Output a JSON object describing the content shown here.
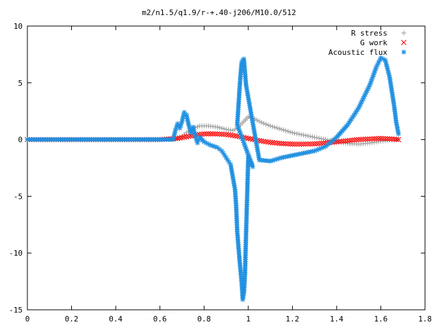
{
  "chart_data": {
    "type": "scatter",
    "title": "m2/n1.5/q1.9/r-+.40-j206/M10.0/512",
    "xlabel": "",
    "ylabel": "",
    "xlim": [
      0,
      1.8
    ],
    "ylim": [
      -15,
      10
    ],
    "x_ticks": [
      "0",
      "0.2",
      "0.4",
      "0.6",
      "0.8",
      "1",
      "1.2",
      "1.4",
      "1.6",
      "1.8"
    ],
    "y_ticks": [
      "10",
      "5",
      "0",
      "-5",
      "-10",
      "-15"
    ],
    "grid": false,
    "legend_position": "top-right",
    "series": [
      {
        "name": "R stress",
        "marker": "+",
        "color": "#a0a0a0",
        "points": [
          [
            0.0,
            0.0
          ],
          [
            0.1,
            0.0
          ],
          [
            0.2,
            0.0
          ],
          [
            0.3,
            0.0
          ],
          [
            0.4,
            0.0
          ],
          [
            0.5,
            0.0
          ],
          [
            0.6,
            0.0
          ],
          [
            0.68,
            0.1
          ],
          [
            0.7,
            0.3
          ],
          [
            0.72,
            0.6
          ],
          [
            0.75,
            1.0
          ],
          [
            0.78,
            1.2
          ],
          [
            0.82,
            1.2
          ],
          [
            0.86,
            1.1
          ],
          [
            0.9,
            0.9
          ],
          [
            0.93,
            0.8
          ],
          [
            0.95,
            1.0
          ],
          [
            0.98,
            1.6
          ],
          [
            1.0,
            2.0
          ],
          [
            1.03,
            1.8
          ],
          [
            1.06,
            1.5
          ],
          [
            1.1,
            1.2
          ],
          [
            1.15,
            0.9
          ],
          [
            1.2,
            0.6
          ],
          [
            1.25,
            0.4
          ],
          [
            1.3,
            0.2
          ],
          [
            1.35,
            0.0
          ],
          [
            1.4,
            -0.2
          ],
          [
            1.45,
            -0.35
          ],
          [
            1.5,
            -0.4
          ],
          [
            1.55,
            -0.3
          ],
          [
            1.6,
            -0.15
          ],
          [
            1.65,
            -0.05
          ],
          [
            1.68,
            0.0
          ]
        ]
      },
      {
        "name": "G work",
        "marker": "x",
        "color": "#ff0000",
        "points": [
          [
            0.0,
            0.0
          ],
          [
            0.1,
            0.0
          ],
          [
            0.2,
            0.0
          ],
          [
            0.3,
            0.0
          ],
          [
            0.4,
            0.0
          ],
          [
            0.5,
            0.0
          ],
          [
            0.6,
            0.0
          ],
          [
            0.68,
            0.1
          ],
          [
            0.72,
            0.25
          ],
          [
            0.76,
            0.4
          ],
          [
            0.8,
            0.5
          ],
          [
            0.85,
            0.5
          ],
          [
            0.9,
            0.45
          ],
          [
            0.95,
            0.3
          ],
          [
            1.0,
            0.1
          ],
          [
            1.05,
            -0.1
          ],
          [
            1.1,
            -0.25
          ],
          [
            1.15,
            -0.35
          ],
          [
            1.2,
            -0.4
          ],
          [
            1.25,
            -0.4
          ],
          [
            1.3,
            -0.38
          ],
          [
            1.35,
            -0.3
          ],
          [
            1.4,
            -0.2
          ],
          [
            1.45,
            -0.1
          ],
          [
            1.5,
            0.0
          ],
          [
            1.55,
            0.05
          ],
          [
            1.6,
            0.1
          ],
          [
            1.65,
            0.05
          ],
          [
            1.68,
            0.0
          ]
        ]
      },
      {
        "name": "Acoustic flux",
        "marker": "*",
        "color": "#1f8fe0",
        "points": [
          [
            0.0,
            0.0
          ],
          [
            0.1,
            0.0
          ],
          [
            0.2,
            0.0
          ],
          [
            0.3,
            0.0
          ],
          [
            0.4,
            0.0
          ],
          [
            0.5,
            0.0
          ],
          [
            0.6,
            0.0
          ],
          [
            0.66,
            0.0
          ],
          [
            0.67,
            0.8
          ],
          [
            0.68,
            1.4
          ],
          [
            0.69,
            1.0
          ],
          [
            0.7,
            1.6
          ],
          [
            0.71,
            2.4
          ],
          [
            0.72,
            2.2
          ],
          [
            0.73,
            1.3
          ],
          [
            0.74,
            0.6
          ],
          [
            0.75,
            1.1
          ],
          [
            0.76,
            0.3
          ],
          [
            0.77,
            -0.3
          ],
          [
            0.78,
            0.2
          ],
          [
            0.8,
            -0.2
          ],
          [
            0.83,
            -0.5
          ],
          [
            0.86,
            -0.7
          ],
          [
            0.88,
            -1.0
          ],
          [
            0.9,
            -1.6
          ],
          [
            0.92,
            -2.2
          ],
          [
            0.94,
            -4.4
          ],
          [
            0.945,
            -5.8
          ],
          [
            0.95,
            -8.1
          ],
          [
            0.96,
            -10.5
          ],
          [
            0.97,
            -12.6
          ],
          [
            0.975,
            -14.1
          ],
          [
            0.98,
            -13.6
          ],
          [
            0.985,
            -11.9
          ],
          [
            0.99,
            -8.3
          ],
          [
            1.0,
            -1.5
          ],
          [
            1.01,
            -1.9
          ],
          [
            1.02,
            -2.4
          ],
          [
            0.95,
            1.3
          ],
          [
            0.955,
            2.8
          ],
          [
            0.96,
            4.3
          ],
          [
            0.965,
            5.7
          ],
          [
            0.97,
            6.8
          ],
          [
            0.975,
            7.0
          ],
          [
            0.98,
            7.1
          ],
          [
            0.99,
            4.8
          ],
          [
            1.05,
            -1.8
          ],
          [
            1.1,
            -1.9
          ],
          [
            1.15,
            -1.6
          ],
          [
            1.2,
            -1.4
          ],
          [
            1.25,
            -1.2
          ],
          [
            1.3,
            -1.0
          ],
          [
            1.35,
            -0.6
          ],
          [
            1.4,
            0.2
          ],
          [
            1.45,
            1.3
          ],
          [
            1.5,
            2.8
          ],
          [
            1.55,
            4.8
          ],
          [
            1.58,
            6.4
          ],
          [
            1.6,
            7.2
          ],
          [
            1.62,
            7.0
          ],
          [
            1.64,
            5.5
          ],
          [
            1.66,
            3.0
          ],
          [
            1.67,
            1.5
          ],
          [
            1.68,
            0.5
          ]
        ]
      }
    ]
  }
}
